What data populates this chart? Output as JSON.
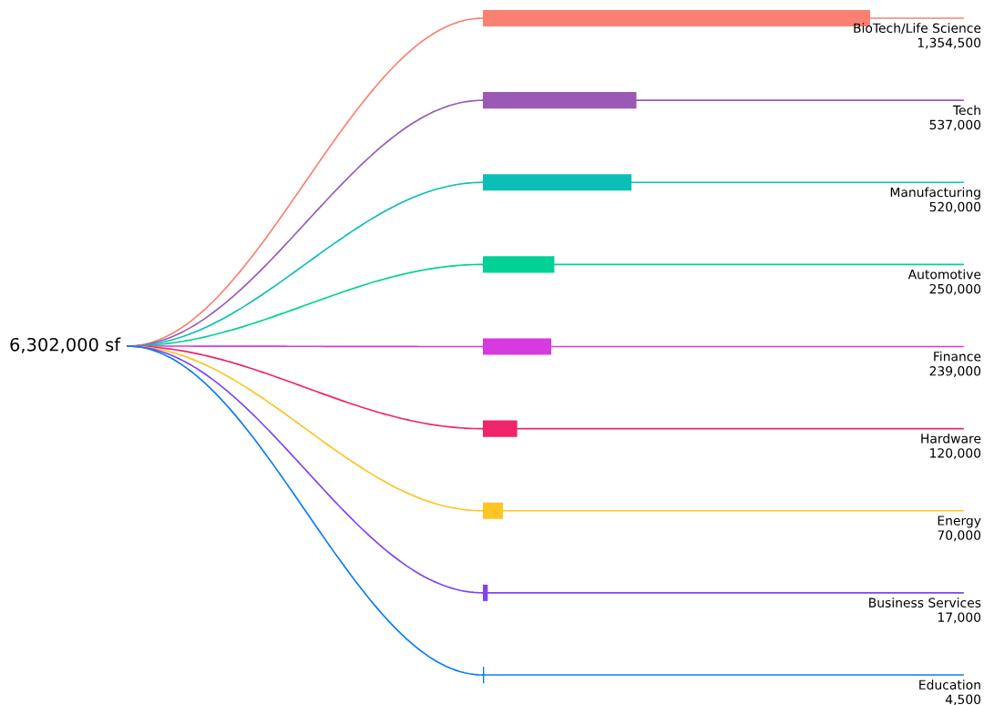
{
  "chart_data": {
    "type": "bar",
    "orientation": "horizontal",
    "categories": [
      "BioTech/Life Science",
      "Tech",
      "Manufacturing",
      "Automotive",
      "Finance",
      "Hardware",
      "Energy",
      "Business Services",
      "Education"
    ],
    "values": [
      1354500,
      537000,
      520000,
      250000,
      239000,
      120000,
      70000,
      17000,
      4500
    ],
    "colors": [
      "#fa8072",
      "#9b59b6",
      "#0bbfb8",
      "#00d195",
      "#d63ae0",
      "#f0246a",
      "#fcc525",
      "#7c45f5",
      "#0a7cf5"
    ],
    "value_labels": [
      "1,354,500",
      "537,000",
      "520,000",
      "250,000",
      "239,000",
      "120,000",
      "70,000",
      "17,000",
      "4,500"
    ],
    "annotations": [
      "6,302,000 sf"
    ],
    "ref_lines": [
      {
        "axis": "y",
        "value": "BioTech/Life Science",
        "color": "#fa8072"
      },
      {
        "axis": "y",
        "value": "Tech",
        "color": "#9b59b6"
      },
      {
        "axis": "y",
        "value": "Manufacturing",
        "color": "#0bbfb8"
      },
      {
        "axis": "y",
        "value": "Automotive",
        "color": "#00d195"
      },
      {
        "axis": "y",
        "value": "Finance",
        "color": "#d63ae0"
      },
      {
        "axis": "y",
        "value": "Hardware",
        "color": "#f0246a"
      },
      {
        "axis": "y",
        "value": "Energy",
        "color": "#fcc525"
      },
      {
        "axis": "y",
        "value": "Business Services",
        "color": "#7c45f5"
      },
      {
        "axis": "y",
        "value": "Education",
        "color": "#0a7cf5"
      }
    ]
  }
}
